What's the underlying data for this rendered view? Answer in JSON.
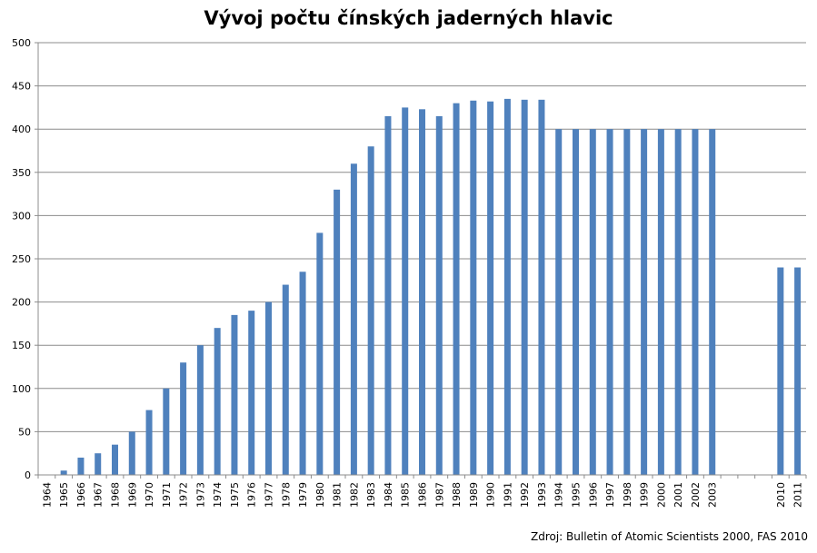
{
  "chart_data": {
    "type": "bar",
    "title": "Vývoj počtu čínských jaderných hlavic",
    "xlabel": "",
    "ylabel": "",
    "ylim": [
      0,
      500
    ],
    "yticks": [
      0,
      50,
      100,
      150,
      200,
      250,
      300,
      350,
      400,
      450,
      500
    ],
    "grid": true,
    "legend": "none",
    "bar_color": "#4F81BD",
    "categories": [
      "1964",
      "1965",
      "1966",
      "1967",
      "1968",
      "1969",
      "1970",
      "1971",
      "1972",
      "1973",
      "1974",
      "1975",
      "1976",
      "1977",
      "1978",
      "1979",
      "1980",
      "1981",
      "1982",
      "1983",
      "1984",
      "1985",
      "1986",
      "1987",
      "1988",
      "1989",
      "1990",
      "1991",
      "1992",
      "1993",
      "1994",
      "1995",
      "1996",
      "1997",
      "1998",
      "1999",
      "2000",
      "2001",
      "2002",
      "2003",
      "",
      "",
      "",
      "2010",
      "2011"
    ],
    "values": [
      0,
      5,
      20,
      25,
      35,
      50,
      75,
      100,
      130,
      150,
      170,
      185,
      190,
      200,
      220,
      235,
      280,
      330,
      360,
      380,
      415,
      425,
      423,
      415,
      430,
      433,
      432,
      435,
      434,
      434,
      400,
      400,
      400,
      400,
      400,
      400,
      400,
      400,
      400,
      400,
      null,
      null,
      null,
      240,
      240
    ],
    "source": "Zdroj: Bulletin of Atomic  Scientists 2000,  FAS 2010"
  }
}
